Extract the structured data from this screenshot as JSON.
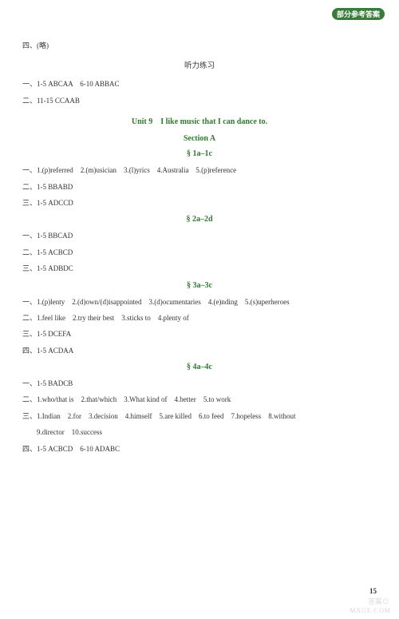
{
  "header_tag": "部分参考答案",
  "s4_note": "四、(略)",
  "listening_title": "听力练习",
  "listening_l1": "一、1-5 ABCAA　6-10 ABBAC",
  "listening_l2": "二、11-15 CCAAB",
  "unit_title": "Unit 9　I like music that I can dance to.",
  "section_a": "Section A",
  "sub_1a": "§ 1a–1c",
  "s1a_l1": "一、1.(p)referred　2.(m)usician　3.(l)yrics　4.Australia　5.(p)reference",
  "s1a_l2": "二、1-5 BBABD",
  "s1a_l3": "三、1-5 ADCCD",
  "sub_2a": "§ 2a–2d",
  "s2a_l1": "一、1-5 BBCAD",
  "s2a_l2": "二、1-5 ACBCD",
  "s2a_l3": "三、1-5 ADBDC",
  "sub_3a": "§ 3a–3c",
  "s3a_l1": "一、1.(p)lenty　2.(d)own/(d)isappointed　3.(d)ocumentaries　4.(e)nding　5.(s)uperheroes",
  "s3a_l2": "二、1.feel like　2.try their best　3.sticks to　4.plenty of",
  "s3a_l3": "三、1-5 DCEFA",
  "s3a_l4": "四、1-5 ACDAA",
  "sub_4a": "§ 4a–4c",
  "s4a_l1": "一、1-5 BADCB",
  "s4a_l2": "二、1.who/that is　2.that/which　3.What kind of　4.better　5.to work",
  "s4a_l3": "三、1.Indian　2.for　3.decision　4.himself　5.are killed　6.to feed　7.hopeless　8.without",
  "s4a_l3b": "9.director　10.success",
  "s4a_l4": "四、1-5 ACBCD　6-10 ADABC",
  "page_num": "15",
  "watermark_top": "答案⊙",
  "watermark": "MXGE.COM"
}
